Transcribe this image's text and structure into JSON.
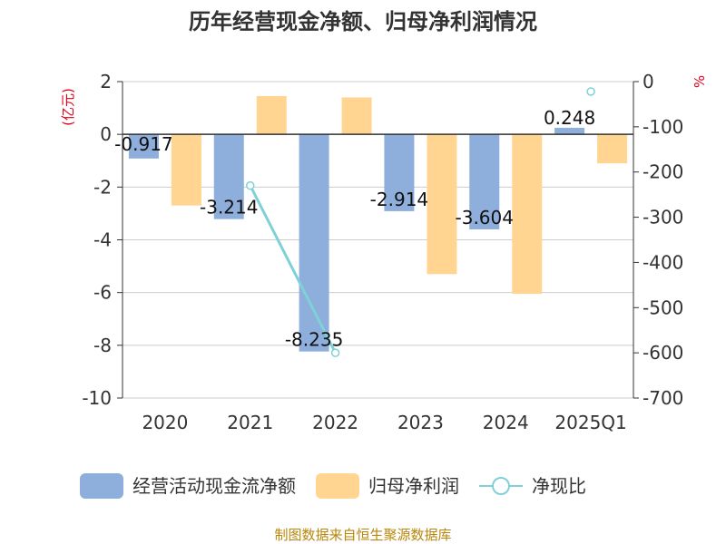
{
  "chart_data": {
    "type": "bar",
    "title": "历年经营现金净额、归母净利润情况",
    "categories": [
      "2020",
      "2021",
      "2022",
      "2023",
      "2024",
      "2025Q1"
    ],
    "series": [
      {
        "name": "经营活动现金流净额",
        "kind": "bar",
        "axis": "left",
        "color": "#8eaedc",
        "values": [
          -0.917,
          -3.214,
          -8.235,
          -2.914,
          -3.604,
          0.248
        ],
        "labels": [
          "-0.917",
          "-3.214",
          "-8.235",
          "-2.914",
          "-3.604",
          "0.248"
        ]
      },
      {
        "name": "归母净利润",
        "kind": "bar",
        "axis": "left",
        "color": "#ffd591",
        "values": [
          -2.7,
          1.45,
          1.4,
          -5.3,
          -6.05,
          -1.1
        ]
      },
      {
        "name": "净现比",
        "kind": "line",
        "axis": "right",
        "color": "#7fd1d8",
        "values": [
          null,
          -230,
          -600,
          null,
          null,
          -22
        ]
      }
    ],
    "y_left": {
      "unit": "(亿元)",
      "min": -10,
      "max": 2,
      "ticks": [
        "2",
        "0",
        "-2",
        "-4",
        "-6",
        "-8",
        "-10"
      ]
    },
    "y_right": {
      "unit": "%",
      "min": -700,
      "max": 0,
      "ticks": [
        "0",
        "-100",
        "-200",
        "-300",
        "-400",
        "-500",
        "-600",
        "-700"
      ]
    },
    "grid": true,
    "legend_position": "bottom"
  },
  "source": "制图数据来自恒生聚源数据库"
}
